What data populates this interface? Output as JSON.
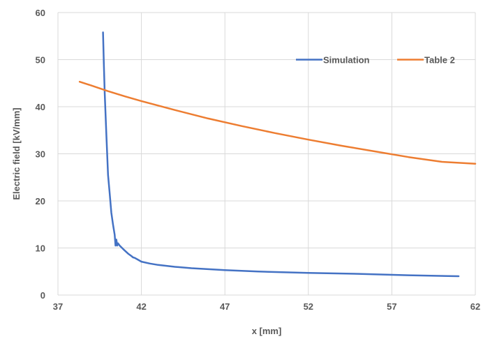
{
  "chart_data": {
    "type": "line",
    "title": "",
    "xlabel": "x [mm]",
    "ylabel": "Electric field [kV/mm]",
    "xlim": [
      37,
      62
    ],
    "ylim": [
      0,
      60
    ],
    "xticks": [
      37,
      42,
      47,
      52,
      57,
      62
    ],
    "yticks": [
      0,
      10,
      20,
      30,
      40,
      50,
      60
    ],
    "grid": true,
    "legend_position": "top-right",
    "series": [
      {
        "name": "Simulation",
        "color": "#4472C4",
        "x": [
          39.7,
          39.75,
          39.8,
          39.9,
          40.0,
          40.1,
          40.2,
          40.3,
          40.4,
          40.45,
          40.5,
          40.55,
          40.6,
          40.7,
          40.9,
          41.2,
          41.4,
          41.5,
          41.6,
          41.8,
          42.0,
          42.5,
          43.0,
          44.0,
          45.0,
          47.0,
          49.0,
          52.0,
          55.0,
          58.0,
          61.0
        ],
        "y": [
          55.8,
          49.0,
          43.0,
          34.0,
          25.5,
          21.5,
          17.5,
          15.0,
          12.8,
          10.5,
          11.8,
          10.5,
          11.0,
          10.5,
          9.8,
          8.8,
          8.3,
          8.0,
          7.9,
          7.5,
          7.1,
          6.7,
          6.4,
          6.0,
          5.7,
          5.3,
          5.0,
          4.7,
          4.5,
          4.2,
          4.0
        ]
      },
      {
        "name": "Table 2",
        "color": "#ED7D31",
        "x": [
          38.3,
          39.0,
          40.0,
          41.0,
          42.0,
          44.0,
          46.0,
          48.0,
          50.0,
          52.0,
          54.0,
          56.0,
          58.0,
          60.0,
          62.0
        ],
        "y": [
          45.3,
          44.5,
          43.3,
          42.2,
          41.2,
          39.3,
          37.5,
          35.9,
          34.4,
          33.0,
          31.7,
          30.5,
          29.3,
          28.3,
          27.9
        ]
      }
    ]
  }
}
